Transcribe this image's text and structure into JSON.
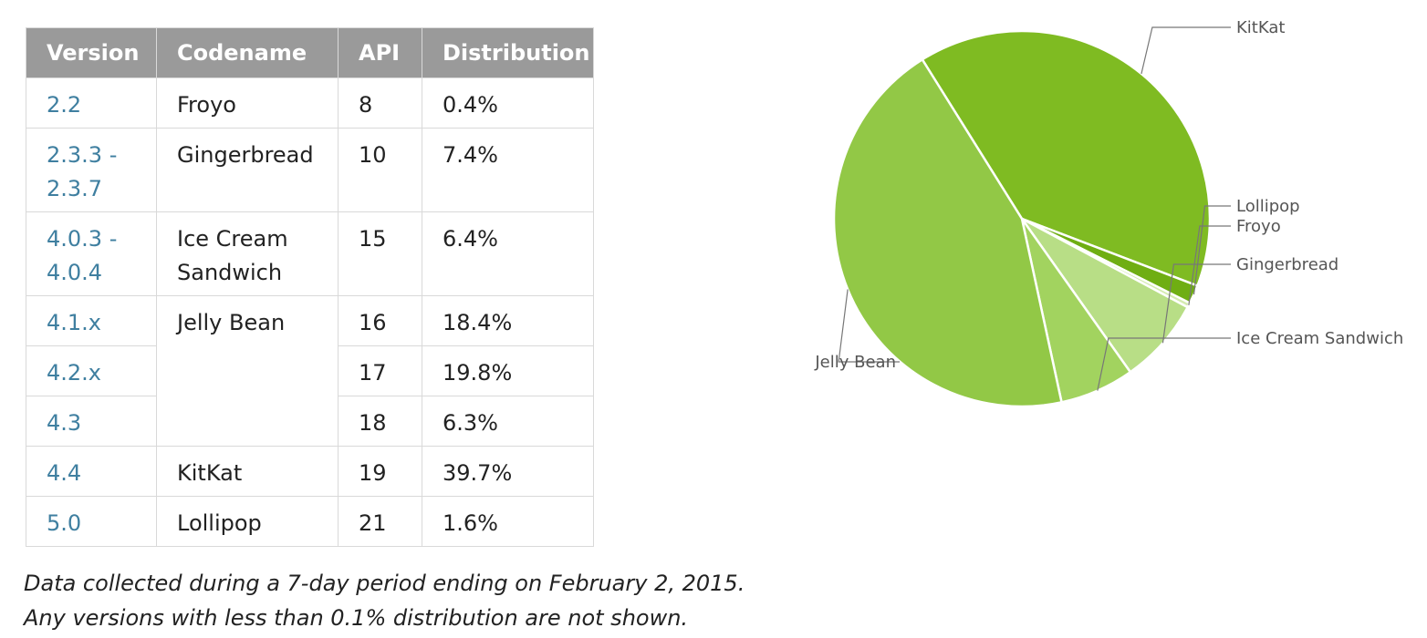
{
  "table": {
    "headers": [
      "Version",
      "Codename",
      "API",
      "Distribution"
    ],
    "rows": [
      {
        "version_lines": [
          "2.2"
        ],
        "codename_lines": [
          "Froyo"
        ],
        "api": "8",
        "distribution": "0.4%"
      },
      {
        "version_lines": [
          "2.3.3 -",
          "2.3.7"
        ],
        "codename_lines": [
          "Gingerbread"
        ],
        "api": "10",
        "distribution": "7.4%"
      },
      {
        "version_lines": [
          "4.0.3 -",
          "4.0.4"
        ],
        "codename_lines": [
          "Ice Cream",
          "Sandwich"
        ],
        "api": "15",
        "distribution": "6.4%"
      },
      {
        "version_lines": [
          "4.1.x"
        ],
        "codename_lines": [
          "Jelly Bean"
        ],
        "api": "16",
        "distribution": "18.4%"
      },
      {
        "version_lines": [
          "4.2.x"
        ],
        "codename_lines": [],
        "api": "17",
        "distribution": "19.8%"
      },
      {
        "version_lines": [
          "4.3"
        ],
        "codename_lines": [],
        "api": "18",
        "distribution": "6.3%"
      },
      {
        "version_lines": [
          "4.4"
        ],
        "codename_lines": [
          "KitKat"
        ],
        "api": "19",
        "distribution": "39.7%"
      },
      {
        "version_lines": [
          "5.0"
        ],
        "codename_lines": [
          "Lollipop"
        ],
        "api": "21",
        "distribution": "1.6%"
      }
    ]
  },
  "footnote": {
    "line1": "Data collected during a 7-day period ending on February 2, 2015.",
    "line2": "Any versions with less than 0.1% distribution are not shown."
  },
  "chart_data": {
    "type": "pie",
    "start_label": "KitKat",
    "slices": [
      {
        "label": "KitKat",
        "value": 39.7,
        "color": "#7fbb22"
      },
      {
        "label": "Lollipop",
        "value": 1.6,
        "color": "#6fae13"
      },
      {
        "label": "Froyo",
        "value": 0.4,
        "color": "#d4ebb0"
      },
      {
        "label": "Gingerbread",
        "value": 7.4,
        "color": "#b8de86"
      },
      {
        "label": "Ice Cream Sandwich",
        "value": 6.4,
        "color": "#a2d35f"
      },
      {
        "label": "Jelly Bean",
        "value": 44.5,
        "color": "#92c846"
      }
    ],
    "colors": {
      "slice_border": "#ffffff",
      "leader_line": "#777777",
      "label_text": "#555555"
    }
  }
}
